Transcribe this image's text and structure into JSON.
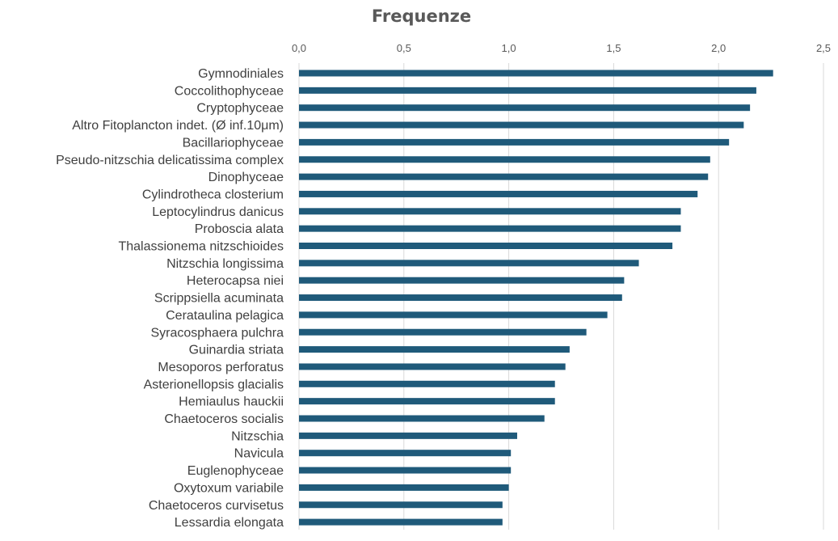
{
  "chart_data": {
    "type": "bar",
    "orientation": "horizontal",
    "title": "Frequenze",
    "xlabel": "",
    "ylabel": "",
    "xlim": [
      0,
      2.5
    ],
    "x_ticks": [
      "0,0",
      "0,5",
      "1,0",
      "1,5",
      "2,0",
      "2,5"
    ],
    "x_axis_position": "top",
    "grid": true,
    "bar_color": "#1f5a7a",
    "categories": [
      "Gymnodiniales",
      "Coccolithophyceae",
      "Cryptophyceae",
      "Altro Fitoplancton indet. (Ø inf.10μm)",
      "Bacillariophyceae",
      "Pseudo-nitzschia delicatissima complex",
      "Dinophyceae",
      "Cylindrotheca closterium",
      "Leptocylindrus danicus",
      "Proboscia alata",
      "Thalassionema nitzschioides",
      "Nitzschia longissima",
      "Heterocapsa niei",
      "Scrippsiella acuminata",
      "Cerataulina pelagica",
      "Syracosphaera pulchra",
      "Guinardia striata",
      "Mesoporos perforatus",
      "Asterionellopsis glacialis",
      "Hemiaulus hauckii",
      "Chaetoceros socialis",
      "Nitzschia",
      "Navicula",
      "Euglenophyceae",
      "Oxytoxum variabile",
      "Chaetoceros curvisetus",
      "Lessardia elongata"
    ],
    "values": [
      2.26,
      2.18,
      2.15,
      2.12,
      2.05,
      1.96,
      1.95,
      1.9,
      1.82,
      1.82,
      1.78,
      1.62,
      1.55,
      1.54,
      1.47,
      1.37,
      1.29,
      1.27,
      1.22,
      1.22,
      1.17,
      1.04,
      1.01,
      1.01,
      1.0,
      0.97,
      0.97
    ]
  }
}
